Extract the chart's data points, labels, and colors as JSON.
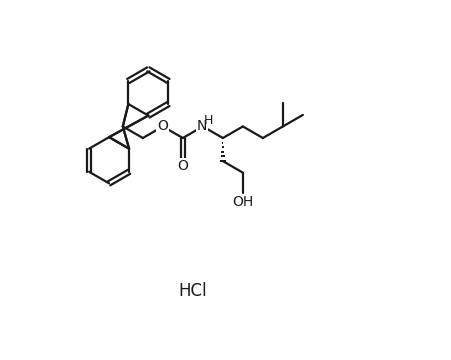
{
  "background_color": "#ffffff",
  "line_color": "#1a1a1a",
  "line_width": 1.6,
  "text_color": "#1a1a1a",
  "font_size_label": 10,
  "font_size_hcl": 12,
  "hcl_text": "HCl",
  "label_NH": "H",
  "label_O1": "O",
  "label_O2": "O",
  "label_OH": "OH"
}
